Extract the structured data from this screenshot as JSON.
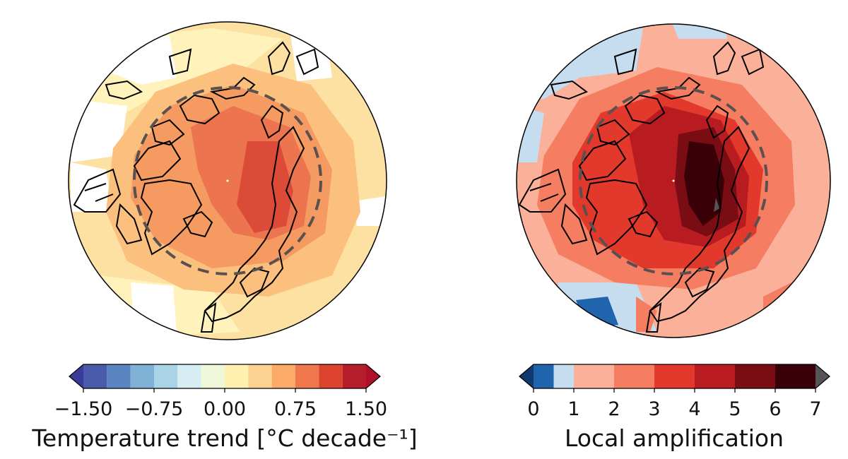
{
  "maps": {
    "left": {
      "colorbar": {
        "label": "Temperature trend [°C decade⁻¹]",
        "ticks": [
          "−1.50",
          "−0.75",
          "0.00",
          "0.75",
          "1.50"
        ],
        "tick_values": [
          -1.5,
          -0.75,
          0.0,
          0.75,
          1.5
        ],
        "levels": [
          -1.5,
          -1.25,
          -1.0,
          -0.75,
          -0.5,
          -0.25,
          0.0,
          0.25,
          0.5,
          0.75,
          1.0,
          1.25,
          1.5
        ],
        "colors": [
          "#4a5bab",
          "#5a85c0",
          "#7fb0d6",
          "#a9d4e8",
          "#d6edf3",
          "#eef7d8",
          "#fff0b0",
          "#fdd290",
          "#fbaa67",
          "#f0774b",
          "#dd4430",
          "#b51e2a"
        ],
        "extend_under_color": "#3a3a9a",
        "extend_over_color": "#b0102a"
      },
      "colors": {
        "ocean_base": "#fde1a3",
        "land_pale": "#fff2ba",
        "no_data": "#ffffff",
        "mid": "#fbbf7e",
        "orange": "#f59a61",
        "strong": "#ec7550",
        "max": "#dc4a38"
      }
    },
    "right": {
      "colorbar": {
        "label": "Local amplification",
        "ticks": [
          "0",
          "1",
          "2",
          "3",
          "4",
          "5",
          "6",
          "7"
        ],
        "tick_values": [
          0,
          1,
          2,
          3,
          4,
          5,
          6,
          7
        ],
        "levels": [
          0,
          0.5,
          1,
          2,
          3,
          4,
          5,
          6,
          7
        ],
        "colors": [
          "#1f64ac",
          "#c6dcef",
          "#fbb09a",
          "#f47d62",
          "#e3392d",
          "#b81c21",
          "#7a0c14",
          "#3a0008"
        ],
        "extend_under_color": "#0f3a6e",
        "extend_over_color": "#555555"
      },
      "colors": {
        "base": "#fbb09a",
        "pale_blue": "#c6dcef",
        "dark_blue": "#1f64ac",
        "red": "#f47d62",
        "red2": "#e3392d",
        "dark_red": "#b81c21",
        "darker": "#7a0c14",
        "darkest": "#3a0008"
      }
    },
    "arctic_circle_color": "#5a5050",
    "coastline_color": "#000000"
  }
}
